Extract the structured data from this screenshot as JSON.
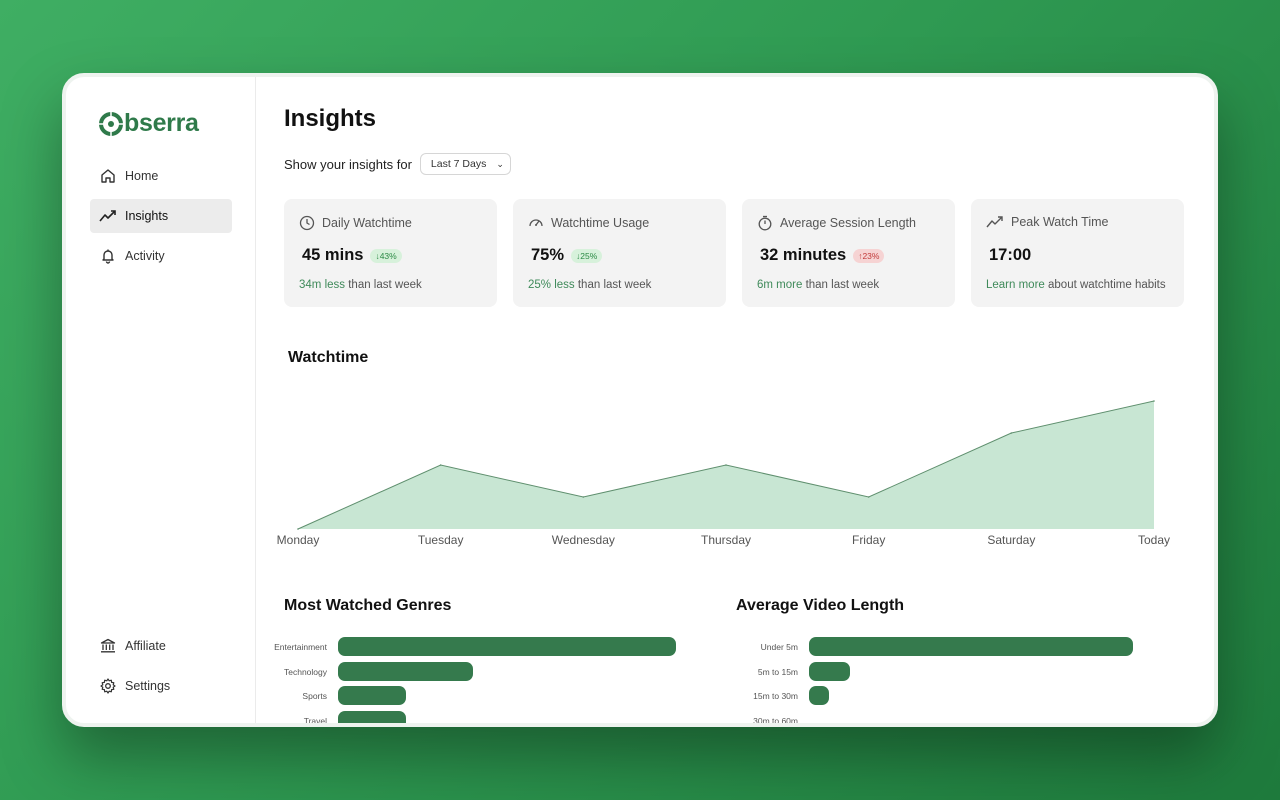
{
  "brand": {
    "name": "bserra",
    "logo_letter": "O",
    "color": "#2f7a4a"
  },
  "sidebar": {
    "items": [
      {
        "label": "Home",
        "icon": "home-icon",
        "active": false
      },
      {
        "label": "Insights",
        "icon": "trend-icon",
        "active": true
      },
      {
        "label": "Activity",
        "icon": "bell-icon",
        "active": false
      }
    ],
    "bottom_items": [
      {
        "label": "Affiliate",
        "icon": "bank-icon"
      },
      {
        "label": "Settings",
        "icon": "gear-icon"
      }
    ]
  },
  "main": {
    "title": "Insights",
    "range_label": "Show your insights for",
    "range_value": "Last 7 Days",
    "cards": [
      {
        "title": "Daily Watchtime",
        "icon": "clock-icon",
        "value": "45 mins",
        "badge": "43%",
        "badge_dir": "down",
        "badge_tone": "good",
        "foot_hl": "34m less",
        "foot_rest": " than last week"
      },
      {
        "title": "Watchtime Usage",
        "icon": "gauge-icon",
        "value": "75%",
        "badge": "25%",
        "badge_dir": "down",
        "badge_tone": "good",
        "foot_hl": "25% less",
        "foot_rest": " than last week"
      },
      {
        "title": "Average Session Length",
        "icon": "stopwatch-icon",
        "value": "32 minutes",
        "badge": "23%",
        "badge_dir": "up",
        "badge_tone": "bad",
        "foot_hl": "6m more",
        "foot_rest": " than last week"
      },
      {
        "title": "Peak Watch Time",
        "icon": "trend-icon",
        "value": "17:00",
        "badge": "",
        "foot_hl": "Learn more",
        "foot_rest": " about watchtime habits"
      }
    ],
    "watchtime_title": "Watchtime",
    "genres_title": "Most Watched Genres",
    "length_title": "Average Video Length"
  },
  "colors": {
    "accent": "#2f7a4a",
    "area_fill": "#c8e6d3",
    "bar": "#357a4d"
  },
  "chart_data": [
    {
      "type": "area",
      "title": "Watchtime",
      "categories": [
        "Monday",
        "Tuesday",
        "Wednesday",
        "Thursday",
        "Friday",
        "Saturday",
        "Today"
      ],
      "values": [
        0,
        50,
        25,
        50,
        25,
        75,
        100
      ],
      "ylim": [
        0,
        100
      ],
      "grid": false
    },
    {
      "type": "bar",
      "orientation": "horizontal",
      "title": "Most Watched Genres",
      "categories": [
        "Entertainment",
        "Technology",
        "Sports",
        "Travel"
      ],
      "values": [
        100,
        40,
        20,
        20
      ],
      "xlim": [
        0,
        100
      ]
    },
    {
      "type": "bar",
      "orientation": "horizontal",
      "title": "Average Video Length",
      "categories": [
        "Under 5m",
        "5m to 15m",
        "15m to 30m",
        "30m to 60m"
      ],
      "values": [
        100,
        12.5,
        6,
        0
      ],
      "xlim": [
        0,
        100
      ]
    }
  ]
}
